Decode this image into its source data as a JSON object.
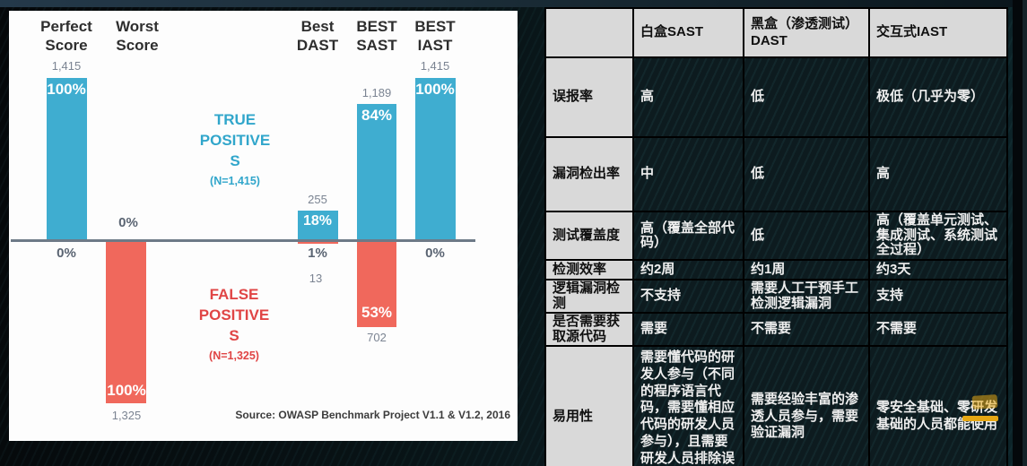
{
  "colors": {
    "true_positive_bar": "#3fadd0",
    "false_positive_bar": "#f0685c",
    "true_positive_text": "#31a6cb",
    "false_positive_text": "#e04545",
    "axis": "#6d7a87",
    "table_header_bg": "#d9d9d9",
    "table_cell_bg": "#0d1b1f",
    "annotation_yellow": "#e6a714",
    "panel_bg": "#fdfdfd"
  },
  "chart_data": [
    {
      "type": "bar",
      "title": "",
      "xlabel": "",
      "ylabel": "",
      "ylim_pct": [
        -100,
        100
      ],
      "grid": false,
      "source_note": "Source: OWASP Benchmark Project V1.1 & V1.2, 2016",
      "legend": {
        "true_positives": {
          "text": "TRUE\nPOSITIVE\nS",
          "n_label": "(N=1,415)",
          "n": 1415
        },
        "false_positives": {
          "text": "FALSE\nPOSITIVE\nS",
          "n_label": "(N=1,325)",
          "n": 1325
        }
      },
      "categories": [
        "Perfect Score",
        "Worst Score",
        "Best DAST",
        "BEST SAST",
        "BEST IAST"
      ],
      "series": [
        {
          "name": "TRUE POSITIVES",
          "pct": [
            100,
            0,
            18,
            84,
            100
          ],
          "counts": [
            1415,
            0,
            255,
            1189,
            1415
          ]
        },
        {
          "name": "FALSE POSITIVES",
          "pct": [
            0,
            100,
            1,
            53,
            0
          ],
          "counts": [
            0,
            1325,
            13,
            702,
            0
          ]
        }
      ],
      "columns": [
        {
          "header": "Perfect\nScore",
          "tp_pct": 100,
          "tp_pct_label": "100%",
          "tp_count_label": "1,415",
          "fp_pct": 0,
          "fp_pct_label": "0%"
        },
        {
          "header": "Worst\nScore",
          "tp_pct": 0,
          "tp_pct_label": "0%",
          "fp_pct": 100,
          "fp_pct_label": "100%",
          "fp_count_label": "1,325"
        },
        {
          "header": "Best\nDAST",
          "tp_pct": 18,
          "tp_pct_label": "18%",
          "tp_count_label": "255",
          "fp_pct": 1,
          "fp_pct_label": "1%",
          "fp_count_label": "13"
        },
        {
          "header": "BEST\nSAST",
          "tp_pct": 84,
          "tp_pct_label": "84%",
          "tp_count_label": "1,189",
          "fp_pct": 53,
          "fp_pct_label": "53%",
          "fp_count_label": "702"
        },
        {
          "header": "BEST\nIAST",
          "tp_pct": 100,
          "tp_pct_label": "100%",
          "tp_count_label": "1,415",
          "fp_pct": 0,
          "fp_pct_label": "0%"
        }
      ]
    },
    {
      "type": "table",
      "headers": [
        "",
        "白盒SAST",
        "黑盒（渗透测试）DAST",
        "交互式IAST"
      ],
      "rows": [
        {
          "label": "误报率",
          "cells": [
            "高",
            "低",
            "极低（几乎为零）"
          ]
        },
        {
          "label": "漏洞检出率",
          "cells": [
            "中",
            "低",
            "高"
          ]
        },
        {
          "label": "测试覆盖度",
          "cells": [
            "高（覆盖全部代码）",
            "低",
            "高（覆盖单元测试、集成测试、系统测试全过程）"
          ]
        },
        {
          "label": "检测效率",
          "cells": [
            "约2周",
            "约1周",
            "约3天"
          ]
        },
        {
          "label": "逻辑漏洞检测",
          "cells": [
            "不支持",
            "需要人工干预手工检测逻辑漏洞",
            "支持"
          ]
        },
        {
          "label": "是否需要获取源代码",
          "cells": [
            "需要",
            "不需要",
            "不需要"
          ]
        },
        {
          "label": "易用性",
          "cells": [
            "需要懂代码的研发人参与（不同的程序语言代码，需要懂相应代码的研发人员参与），且需要研发人员排除误报。",
            "需要经验丰富的渗透人员参与，需要验证漏洞",
            "零安全基础、零研发基础的人员都能使用"
          ]
        }
      ]
    }
  ]
}
